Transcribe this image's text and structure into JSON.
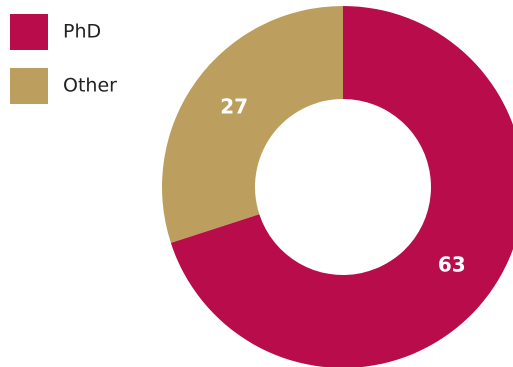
{
  "chart_data": {
    "type": "donut",
    "categories": [
      "PhD",
      "Other"
    ],
    "values": [
      63,
      27
    ],
    "colors": [
      "#b80c4b",
      "#bc9e5e"
    ]
  }
}
